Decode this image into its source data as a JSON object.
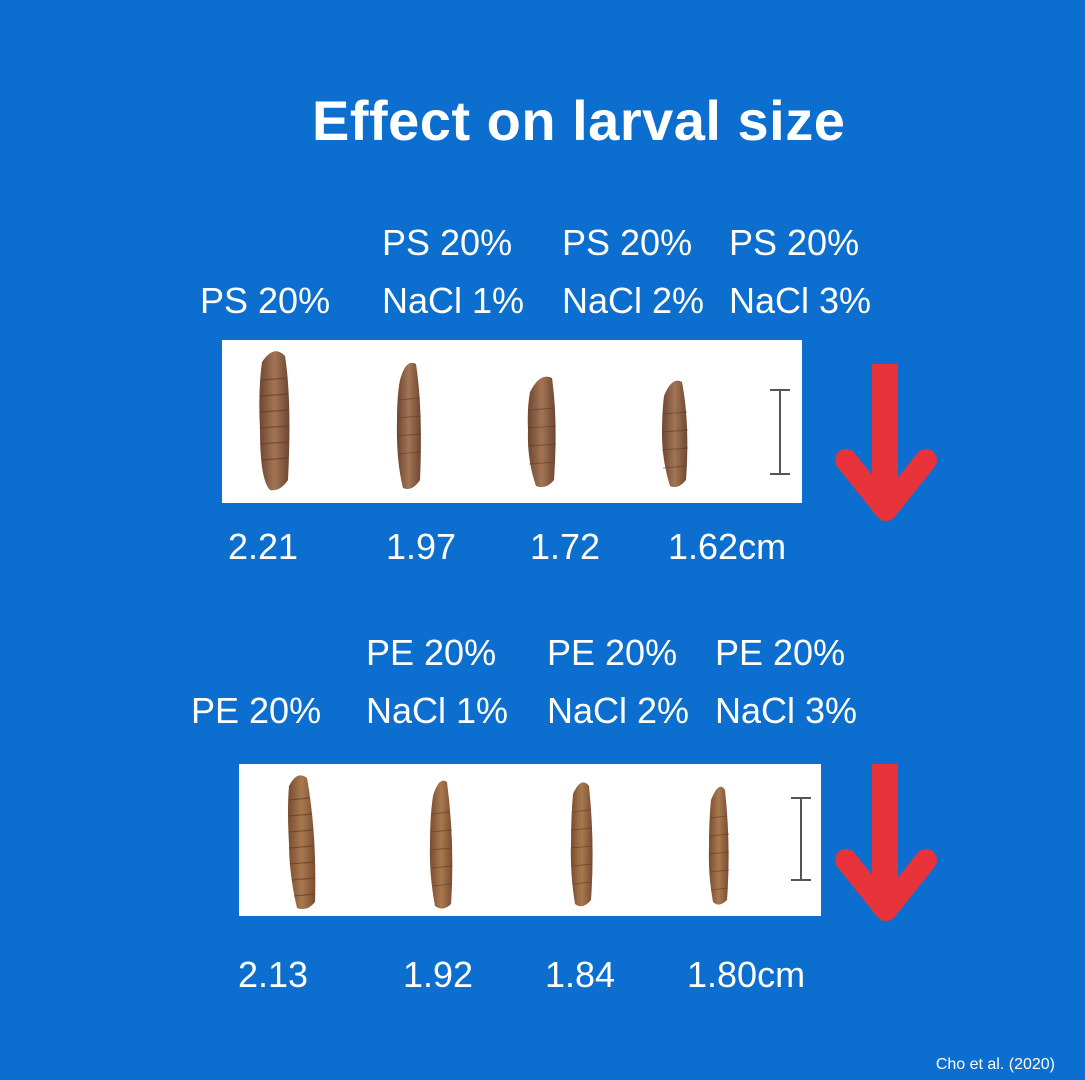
{
  "title": "Effect on larval size",
  "groups": [
    {
      "labels": [
        {
          "line1": "",
          "line2": "PS 20%"
        },
        {
          "line1": "PS 20%",
          "line2": "NaCl 1%"
        },
        {
          "line1": "PS 20%",
          "line2": "NaCl 2%"
        },
        {
          "line1": "PS 20%",
          "line2": "NaCl 3%"
        }
      ],
      "values": [
        "2.21",
        "1.97",
        "1.72",
        "1.62cm"
      ],
      "trend_icon": "red-down-arrow-icon"
    },
    {
      "labels": [
        {
          "line1": "",
          "line2": "PE 20%"
        },
        {
          "line1": "PE 20%",
          "line2": "NaCl 1%"
        },
        {
          "line1": "PE 20%",
          "line2": "NaCl 2%"
        },
        {
          "line1": "PE 20%",
          "line2": "NaCl 3%"
        }
      ],
      "values": [
        "2.13",
        "1.92",
        "1.84",
        "1.80cm"
      ],
      "trend_icon": "red-down-arrow-icon"
    }
  ],
  "credit": "Cho et al. (2020)",
  "colors": {
    "background": "#0c6fcf",
    "arrow": "#e8333a",
    "larva": "#8a5a3a"
  }
}
